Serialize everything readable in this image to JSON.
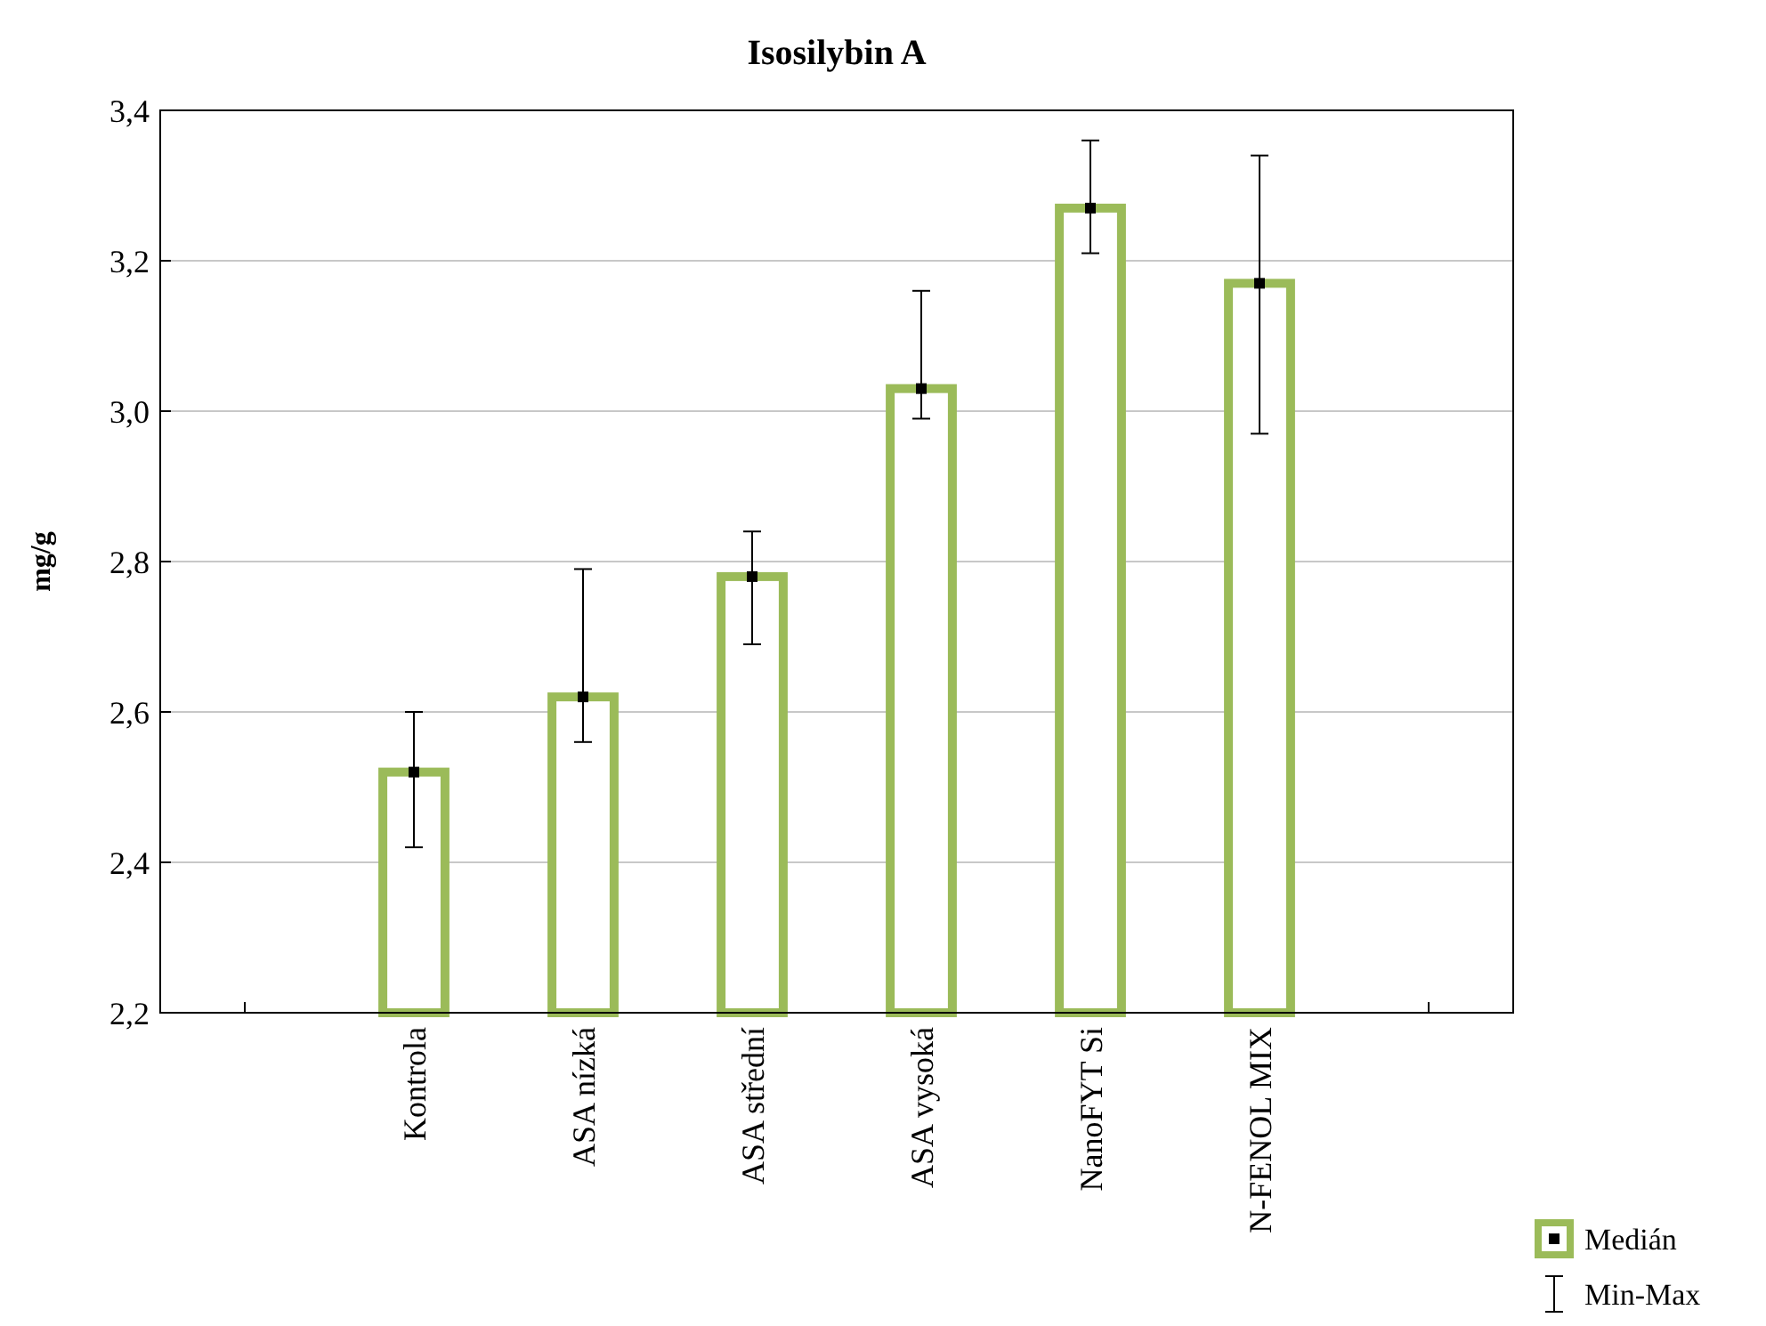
{
  "chart_data": {
    "type": "bar",
    "title": "Isosilybin A",
    "ylabel": "mg/g",
    "categories": [
      null,
      "Kontrola",
      "ASA nízká",
      "ASA střední",
      "ASA vysoká",
      "NanoFYT Si",
      "N-FENOL MIX",
      null
    ],
    "series": [
      {
        "name": "Medián",
        "color": "#9bbb59",
        "values": [
          null,
          2.52,
          2.62,
          2.78,
          3.03,
          3.27,
          3.17,
          null
        ],
        "errors": [
          null,
          [
            2.42,
            2.6
          ],
          [
            2.56,
            2.79
          ],
          [
            2.69,
            2.84
          ],
          [
            2.99,
            3.16
          ],
          [
            3.21,
            3.36
          ],
          [
            2.97,
            3.34
          ],
          null
        ]
      },
      {
        "type": "scatter",
        "color": "#000000",
        "x": [
          "Kontrola",
          "ASA nízká",
          "ASA střední",
          "ASA vysoká",
          "NanoFYT Si",
          "N-FENOL MIX"
        ],
        "values": [
          2.52,
          2.62,
          2.78,
          3.03,
          3.27,
          3.17
        ]
      }
    ],
    "annotations": [
      "Min-Max"
    ],
    "marker": "square",
    "ylim": [
      2.2,
      3.4
    ],
    "yticks": [
      {
        "value": 2.2,
        "label": "2,2"
      },
      {
        "value": 2.4,
        "label": "2,4"
      },
      {
        "value": 2.6,
        "label": "2,6"
      },
      {
        "value": 2.8,
        "label": "2,8"
      },
      {
        "value": 3.0,
        "label": "3,0"
      },
      {
        "value": 3.2,
        "label": "3,2"
      },
      {
        "value": 3.4,
        "label": "3,4"
      }
    ],
    "grid": "y",
    "legend": "bottom right"
  }
}
